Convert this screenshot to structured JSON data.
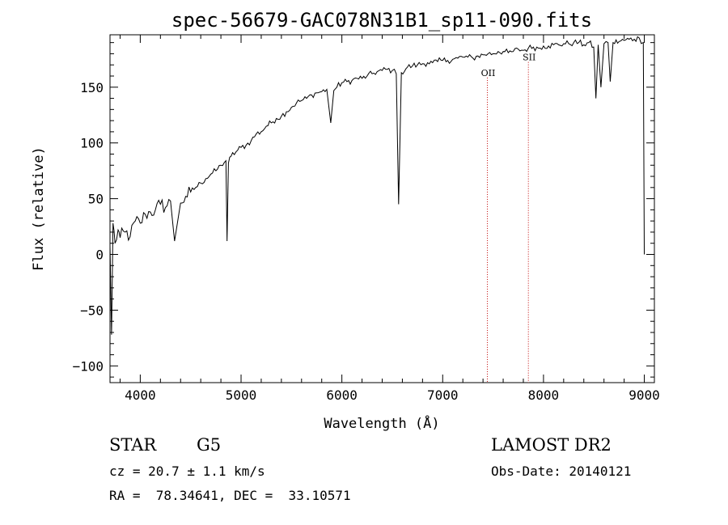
{
  "chart_data": {
    "type": "line",
    "title": "spec-56679-GAC078N31B1_sp11-090.fits",
    "xlabel": "Wavelength (Å)",
    "ylabel": "Flux (relative)",
    "xlim": [
      3700,
      9100
    ],
    "ylim": [
      -115,
      197
    ],
    "xticks": [
      4000,
      5000,
      6000,
      7000,
      8000,
      9000
    ],
    "yticks": [
      -100,
      -50,
      0,
      50,
      100,
      150
    ],
    "grid": false,
    "line_color": "#000000",
    "marker_color": "#c00000",
    "series": [
      {
        "x": [
          3700,
          3715,
          3730,
          3750,
          3780,
          3800,
          3850,
          3900,
          3950,
          4000,
          4050,
          4100,
          4150,
          4200,
          4250,
          4300,
          4340,
          4400,
          4450,
          4500,
          4550,
          4600,
          4650,
          4700,
          4750,
          4800,
          4850,
          4861,
          4875,
          4900,
          4950,
          5000,
          5050,
          5100,
          5150,
          5200,
          5250,
          5300,
          5350,
          5400,
          5450,
          5500,
          5550,
          5600,
          5650,
          5700,
          5750,
          5800,
          5850,
          5890,
          5920,
          5950,
          6000,
          6050,
          6100,
          6150,
          6200,
          6250,
          6300,
          6350,
          6400,
          6450,
          6500,
          6540,
          6563,
          6590,
          6650,
          6700,
          6750,
          6800,
          6850,
          6900,
          6950,
          7000,
          7050,
          7100,
          7150,
          7200,
          7250,
          7300,
          7350,
          7400,
          7450,
          7500,
          7550,
          7600,
          7650,
          7700,
          7750,
          7800,
          7850,
          7900,
          7950,
          8000,
          8050,
          8100,
          8150,
          8200,
          8250,
          8300,
          8350,
          8400,
          8450,
          8498,
          8520,
          8542,
          8570,
          8600,
          8640,
          8662,
          8690,
          8750,
          8800,
          8850,
          8900,
          8950,
          8990,
          9000
        ],
        "y": [
          8,
          -72,
          28,
          10,
          22,
          15,
          20,
          16,
          30,
          28,
          36,
          38,
          40,
          45,
          42,
          48,
          12,
          46,
          52,
          56,
          60,
          64,
          68,
          72,
          75,
          80,
          84,
          12,
          82,
          88,
          92,
          96,
          98,
          102,
          108,
          110,
          115,
          118,
          122,
          124,
          128,
          132,
          136,
          138,
          140,
          143,
          145,
          146,
          148,
          118,
          147,
          150,
          154,
          155,
          156,
          158,
          158,
          160,
          162,
          164,
          165,
          166,
          165,
          162,
          45,
          163,
          168,
          169,
          170,
          171,
          172,
          172,
          173,
          174,
          174,
          175,
          176,
          177,
          177,
          176,
          178,
          179,
          180,
          180,
          182,
          182,
          181,
          182,
          184,
          183,
          185,
          186,
          185,
          187,
          187,
          188,
          188,
          189,
          189,
          190,
          190,
          188,
          190,
          186,
          140,
          188,
          150,
          189,
          190,
          155,
          190,
          191,
          192,
          193,
          193,
          194,
          190,
          0
        ]
      }
    ],
    "line_markers": [
      {
        "x": 7443,
        "label": "OII",
        "label_flux": 163
      },
      {
        "x": 7850,
        "label": "SII",
        "label_flux": 177
      }
    ]
  },
  "footer": {
    "object_class": "STAR",
    "subclass": "G5",
    "survey": "LAMOST DR2",
    "cz": "cz = 20.7 ± 1.1 km/s",
    "obs_date": "Obs-Date: 20140121",
    "coords": "RA =  78.34641, DEC =  33.10571"
  }
}
